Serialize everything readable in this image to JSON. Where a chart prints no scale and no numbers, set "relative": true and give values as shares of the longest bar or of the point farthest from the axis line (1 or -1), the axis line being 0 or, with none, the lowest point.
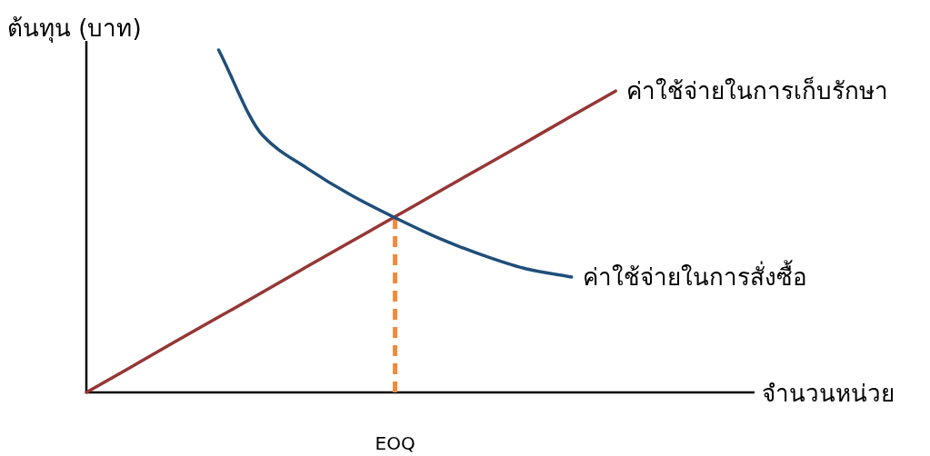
{
  "chart_data": {
    "type": "line",
    "relative": true,
    "xlabel": "จำนวนหน่วย",
    "ylabel": "ต้นทุน (บาท)",
    "categories": [
      null,
      null,
      null,
      null,
      null,
      null,
      null,
      null,
      null,
      null,
      null,
      null,
      null,
      null,
      null,
      null
    ],
    "series": [
      {
        "name": "ค่าใช้จ่ายในการเก็บรักษา",
        "color": "#953735",
        "values": [
          0,
          0.073,
          0.147,
          0.22,
          0.293,
          0.367,
          0.44,
          0.513,
          0.587,
          0.66,
          0.733,
          0.807,
          0.88,
          null,
          null,
          null
        ]
      },
      {
        "name": "ค่าใช้จ่ายในการสั่งซื้อ",
        "color": "#1f4e79",
        "values": [
          null,
          null,
          null,
          1.0,
          0.75,
          0.655,
          0.576,
          0.51,
          0.45,
          0.4,
          0.36,
          0.337,
          null,
          null,
          null,
          null
        ]
      }
    ],
    "ref_lines": [
      {
        "axis": "x",
        "label": "EOQ",
        "color": "#f08a3c",
        "line_style": "dashed"
      }
    ],
    "marker": "none",
    "line_style": "solid"
  }
}
